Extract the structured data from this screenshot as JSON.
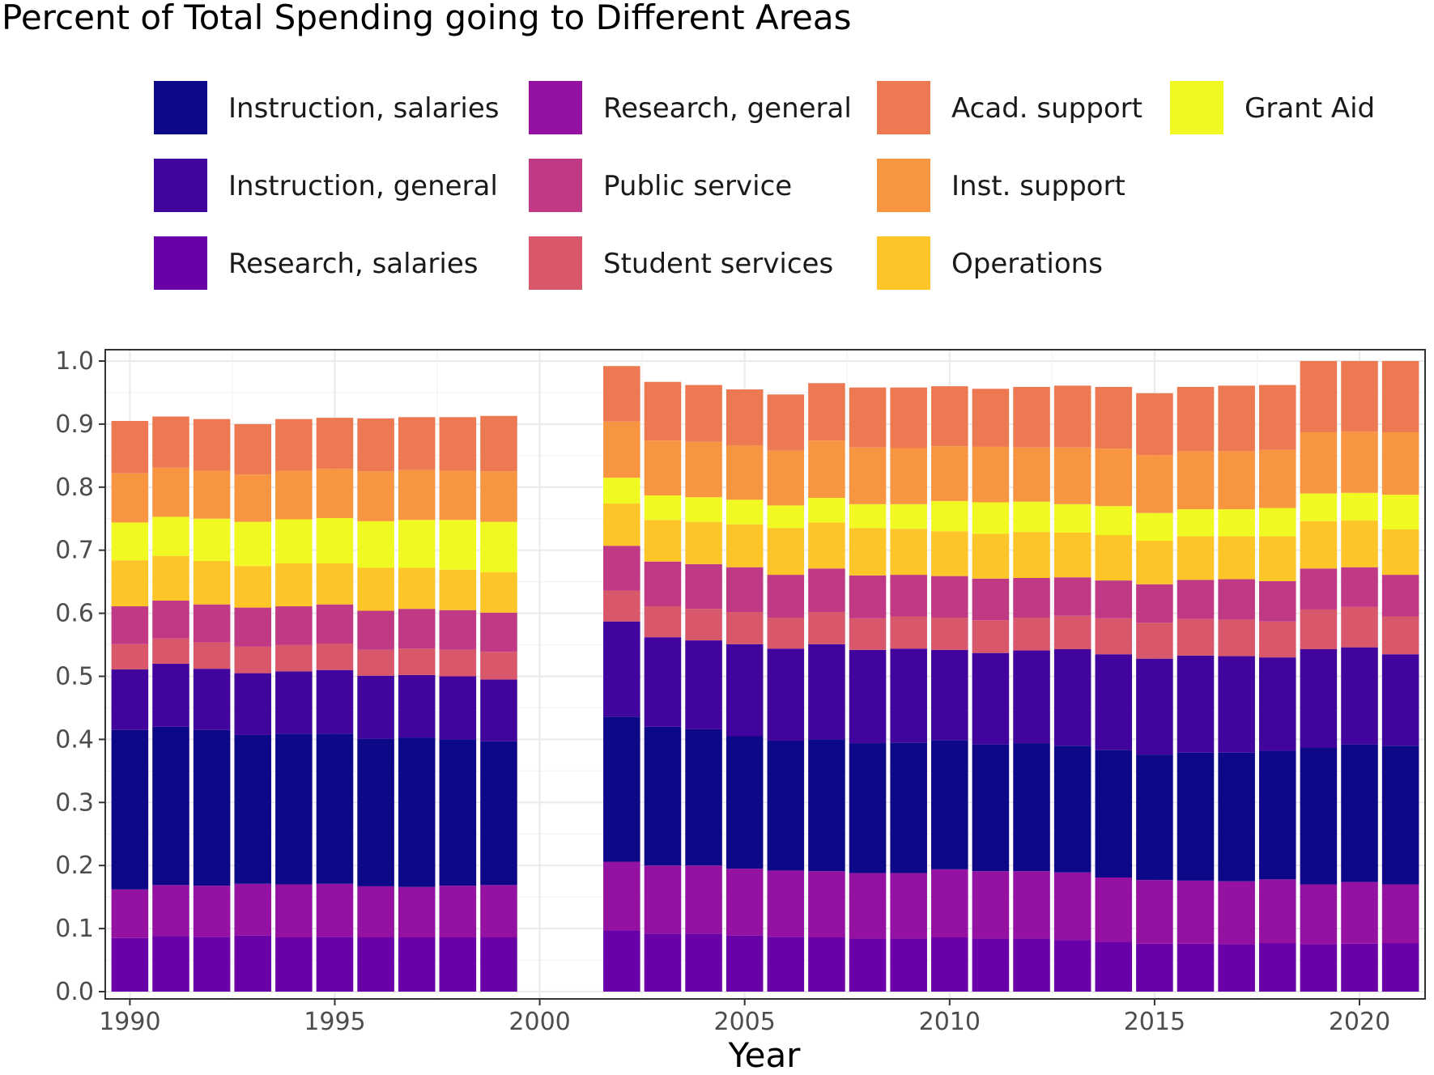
{
  "chart_data": {
    "type": "bar",
    "stacked": true,
    "title": "Percent of Total Spending going to Different Areas",
    "xlabel": "Year",
    "ylabel": "",
    "ylim": [
      0,
      1.0
    ],
    "xlim": [
      1989.4,
      2021.6
    ],
    "grid": true,
    "legend_position": "top",
    "x_ticks": [
      1990,
      1995,
      2000,
      2005,
      2010,
      2015,
      2020
    ],
    "x_tick_labels": [
      "1990",
      "1995",
      "2000",
      "2005",
      "2010",
      "2015",
      "2020"
    ],
    "y_ticks": [
      0.0,
      0.1,
      0.2,
      0.3,
      0.4,
      0.5,
      0.6,
      0.7,
      0.8,
      0.9,
      1.0
    ],
    "y_tick_labels": [
      "0.0",
      "0.1",
      "0.2",
      "0.3",
      "0.4",
      "0.5",
      "0.6",
      "0.7",
      "0.8",
      "0.9",
      "1.0"
    ],
    "x": [
      1990,
      1991,
      1992,
      1993,
      1994,
      1995,
      1996,
      1997,
      1998,
      1999,
      2002,
      2003,
      2004,
      2005,
      2006,
      2007,
      2008,
      2009,
      2010,
      2011,
      2012,
      2013,
      2014,
      2015,
      2016,
      2017,
      2018,
      2019,
      2020,
      2021
    ],
    "series": [
      {
        "name": "Research, salaries",
        "color": "#6a00a8",
        "values": [
          0.085,
          0.088,
          0.087,
          0.089,
          0.086,
          0.087,
          0.086,
          0.086,
          0.086,
          0.086,
          0.097,
          0.092,
          0.092,
          0.089,
          0.087,
          0.086,
          0.084,
          0.084,
          0.086,
          0.084,
          0.084,
          0.082,
          0.079,
          0.076,
          0.076,
          0.075,
          0.077,
          0.075,
          0.076,
          0.077
        ]
      },
      {
        "name": "Research, general",
        "color": "#9511a1",
        "values": [
          0.077,
          0.081,
          0.081,
          0.082,
          0.084,
          0.084,
          0.081,
          0.08,
          0.082,
          0.083,
          0.109,
          0.108,
          0.108,
          0.106,
          0.105,
          0.105,
          0.104,
          0.104,
          0.108,
          0.107,
          0.107,
          0.107,
          0.102,
          0.101,
          0.1,
          0.1,
          0.101,
          0.095,
          0.098,
          0.093
        ]
      },
      {
        "name": "Instruction, salaries",
        "color": "#0d0887",
        "values": [
          0.253,
          0.251,
          0.247,
          0.236,
          0.239,
          0.238,
          0.234,
          0.237,
          0.232,
          0.228,
          0.23,
          0.22,
          0.216,
          0.21,
          0.206,
          0.209,
          0.206,
          0.207,
          0.205,
          0.201,
          0.203,
          0.201,
          0.202,
          0.199,
          0.203,
          0.204,
          0.204,
          0.217,
          0.218,
          0.22
        ]
      },
      {
        "name": "Instruction, general",
        "color": "#41049d",
        "values": [
          0.096,
          0.1,
          0.097,
          0.098,
          0.099,
          0.101,
          0.1,
          0.099,
          0.1,
          0.098,
          0.151,
          0.142,
          0.141,
          0.146,
          0.146,
          0.151,
          0.148,
          0.149,
          0.143,
          0.145,
          0.147,
          0.153,
          0.152,
          0.152,
          0.154,
          0.153,
          0.148,
          0.156,
          0.154,
          0.145
        ]
      },
      {
        "name": "Student services",
        "color": "#d8576b",
        "values": [
          0.04,
          0.04,
          0.042,
          0.042,
          0.042,
          0.042,
          0.041,
          0.042,
          0.042,
          0.044,
          0.049,
          0.049,
          0.05,
          0.051,
          0.049,
          0.051,
          0.05,
          0.051,
          0.051,
          0.052,
          0.052,
          0.053,
          0.057,
          0.057,
          0.058,
          0.058,
          0.057,
          0.063,
          0.064,
          0.06
        ]
      },
      {
        "name": "Public service",
        "color": "#bf3984",
        "values": [
          0.06,
          0.06,
          0.06,
          0.062,
          0.061,
          0.062,
          0.062,
          0.063,
          0.063,
          0.062,
          0.071,
          0.071,
          0.071,
          0.071,
          0.068,
          0.069,
          0.068,
          0.066,
          0.066,
          0.066,
          0.063,
          0.061,
          0.06,
          0.061,
          0.062,
          0.064,
          0.064,
          0.065,
          0.063,
          0.066
        ]
      },
      {
        "name": "Operations",
        "color": "#fdc527",
        "values": [
          0.073,
          0.071,
          0.069,
          0.066,
          0.068,
          0.065,
          0.068,
          0.065,
          0.064,
          0.064,
          0.067,
          0.066,
          0.067,
          0.068,
          0.074,
          0.073,
          0.075,
          0.073,
          0.071,
          0.071,
          0.073,
          0.071,
          0.072,
          0.069,
          0.069,
          0.068,
          0.071,
          0.075,
          0.074,
          0.072
        ]
      },
      {
        "name": "Grant Aid",
        "color": "#f0f921",
        "values": [
          0.06,
          0.062,
          0.067,
          0.07,
          0.07,
          0.072,
          0.074,
          0.076,
          0.079,
          0.08,
          0.041,
          0.039,
          0.039,
          0.039,
          0.036,
          0.039,
          0.038,
          0.039,
          0.048,
          0.05,
          0.048,
          0.045,
          0.046,
          0.044,
          0.043,
          0.043,
          0.045,
          0.044,
          0.044,
          0.055
        ]
      },
      {
        "name": "Inst. support",
        "color": "#f89540",
        "values": [
          0.078,
          0.078,
          0.076,
          0.075,
          0.077,
          0.078,
          0.079,
          0.079,
          0.078,
          0.08,
          0.089,
          0.087,
          0.088,
          0.086,
          0.087,
          0.091,
          0.09,
          0.089,
          0.087,
          0.088,
          0.086,
          0.09,
          0.091,
          0.092,
          0.092,
          0.092,
          0.092,
          0.097,
          0.097,
          0.099
        ]
      },
      {
        "name": "Acad. support",
        "color": "#ed7953",
        "values": [
          0.083,
          0.081,
          0.082,
          0.08,
          0.082,
          0.081,
          0.084,
          0.084,
          0.085,
          0.088,
          0.088,
          0.093,
          0.09,
          0.089,
          0.089,
          0.091,
          0.095,
          0.096,
          0.095,
          0.092,
          0.096,
          0.098,
          0.098,
          0.098,
          0.102,
          0.104,
          0.103,
          0.113,
          0.112,
          0.113
        ]
      }
    ]
  },
  "legend": {
    "order": [
      "Instruction, salaries",
      "Instruction, general",
      "Research, salaries",
      "Research, general",
      "Public service",
      "Student services",
      "Acad. support",
      "Inst. support",
      "Operations",
      "Grant Aid"
    ],
    "items": [
      {
        "label": "Instruction, salaries",
        "color": "#0d0887"
      },
      {
        "label": "Instruction, general",
        "color": "#41049d"
      },
      {
        "label": "Research, salaries",
        "color": "#6a00a8"
      },
      {
        "label": "Research, general",
        "color": "#9511a1"
      },
      {
        "label": "Public service",
        "color": "#bf3984"
      },
      {
        "label": "Student services",
        "color": "#d8576b"
      },
      {
        "label": "Acad. support",
        "color": "#ed7953"
      },
      {
        "label": "Inst. support",
        "color": "#f89540"
      },
      {
        "label": "Operations",
        "color": "#fdc527"
      },
      {
        "label": "Grant Aid",
        "color": "#f0f921"
      }
    ]
  }
}
